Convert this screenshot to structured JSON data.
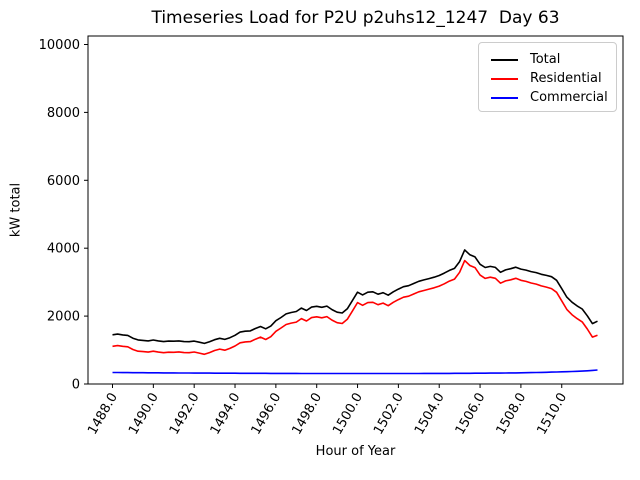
{
  "chart_data": {
    "type": "line",
    "title": "Timeseries Load for P2U p2uhs12_1247  Day 63",
    "xlabel": "Hour of Year",
    "ylabel": "kW total",
    "grid": false,
    "legend_position": "upper right",
    "xlim": [
      1486.8,
      1513.0
    ],
    "ylim": [
      0,
      10250
    ],
    "xticks": [
      1488,
      1490,
      1492,
      1494,
      1496,
      1498,
      1500,
      1502,
      1504,
      1506,
      1508,
      1510
    ],
    "xtick_labels": [
      "1488.0",
      "1490.0",
      "1492.0",
      "1494.0",
      "1496.0",
      "1498.0",
      "1500.0",
      "1502.0",
      "1504.0",
      "1506.0",
      "1508.0",
      "1510.0"
    ],
    "yticks": [
      0,
      2000,
      4000,
      6000,
      8000,
      10000
    ],
    "x_start": 1488.0,
    "x_step": 0.25,
    "series": [
      {
        "name": "Total",
        "color": "#000000",
        "values": [
          1450,
          1470,
          1445,
          1430,
          1350,
          1300,
          1285,
          1270,
          1295,
          1270,
          1250,
          1265,
          1260,
          1270,
          1250,
          1245,
          1265,
          1230,
          1195,
          1245,
          1305,
          1345,
          1315,
          1365,
          1435,
          1530,
          1555,
          1565,
          1635,
          1695,
          1625,
          1705,
          1865,
          1960,
          2065,
          2105,
          2135,
          2235,
          2165,
          2265,
          2290,
          2260,
          2295,
          2190,
          2115,
          2090,
          2215,
          2455,
          2705,
          2625,
          2705,
          2715,
          2645,
          2690,
          2615,
          2715,
          2795,
          2865,
          2895,
          2960,
          3025,
          3065,
          3105,
          3145,
          3195,
          3265,
          3345,
          3405,
          3605,
          3950,
          3805,
          3745,
          3525,
          3430,
          3465,
          3435,
          3290,
          3360,
          3395,
          3440,
          3385,
          3355,
          3310,
          3280,
          3230,
          3200,
          3160,
          3055,
          2810,
          2560,
          2410,
          2300,
          2210,
          2010,
          1780,
          1850
        ]
      },
      {
        "name": "Residential",
        "color": "#ff0000",
        "values": [
          1110,
          1132,
          1109,
          1095,
          1016,
          967,
          953,
          939,
          965,
          941,
          922,
          938,
          934,
          945,
          926,
          922,
          943,
          909,
          875,
          925,
          986,
          1027,
          997,
          1048,
          1118,
          1214,
          1239,
          1250,
          1320,
          1381,
          1311,
          1392,
          1552,
          1648,
          1753,
          1794,
          1824,
          1925,
          1855,
          1955,
          1980,
          1950,
          1986,
          1881,
          1806,
          1781,
          1907,
          2147,
          2397,
          2317,
          2397,
          2407,
          2337,
          2382,
          2307,
          2406,
          2486,
          2556,
          2585,
          2650,
          2715,
          2754,
          2794,
          2833,
          2883,
          2952,
          3032,
          3091,
          3291,
          3635,
          3489,
          3428,
          3207,
          3111,
          3145,
          3114,
          2968,
          3036,
          3069,
          3112,
          3055,
          3022,
          2974,
          2941,
          2888,
          2854,
          2810,
          2701,
          2452,
          2197,
          2042,
          1926,
          1830,
          1620,
          1380,
          1438
        ]
      },
      {
        "name": "Commercial",
        "color": "#0000ff",
        "values": [
          340,
          338,
          336,
          335,
          334,
          333,
          332,
          331,
          330,
          329,
          328,
          327,
          326,
          325,
          324,
          323,
          322,
          321,
          320,
          320,
          319,
          318,
          318,
          317,
          317,
          316,
          316,
          315,
          315,
          314,
          314,
          313,
          313,
          312,
          312,
          311,
          311,
          310,
          310,
          310,
          310,
          310,
          309,
          309,
          309,
          309,
          308,
          308,
          308,
          308,
          308,
          308,
          308,
          308,
          308,
          309,
          309,
          309,
          310,
          310,
          310,
          311,
          311,
          312,
          312,
          313,
          313,
          314,
          314,
          315,
          316,
          317,
          318,
          319,
          320,
          321,
          322,
          324,
          326,
          328,
          330,
          333,
          336,
          339,
          342,
          346,
          350,
          354,
          358,
          363,
          368,
          374,
          380,
          390,
          400,
          412
        ]
      }
    ]
  }
}
